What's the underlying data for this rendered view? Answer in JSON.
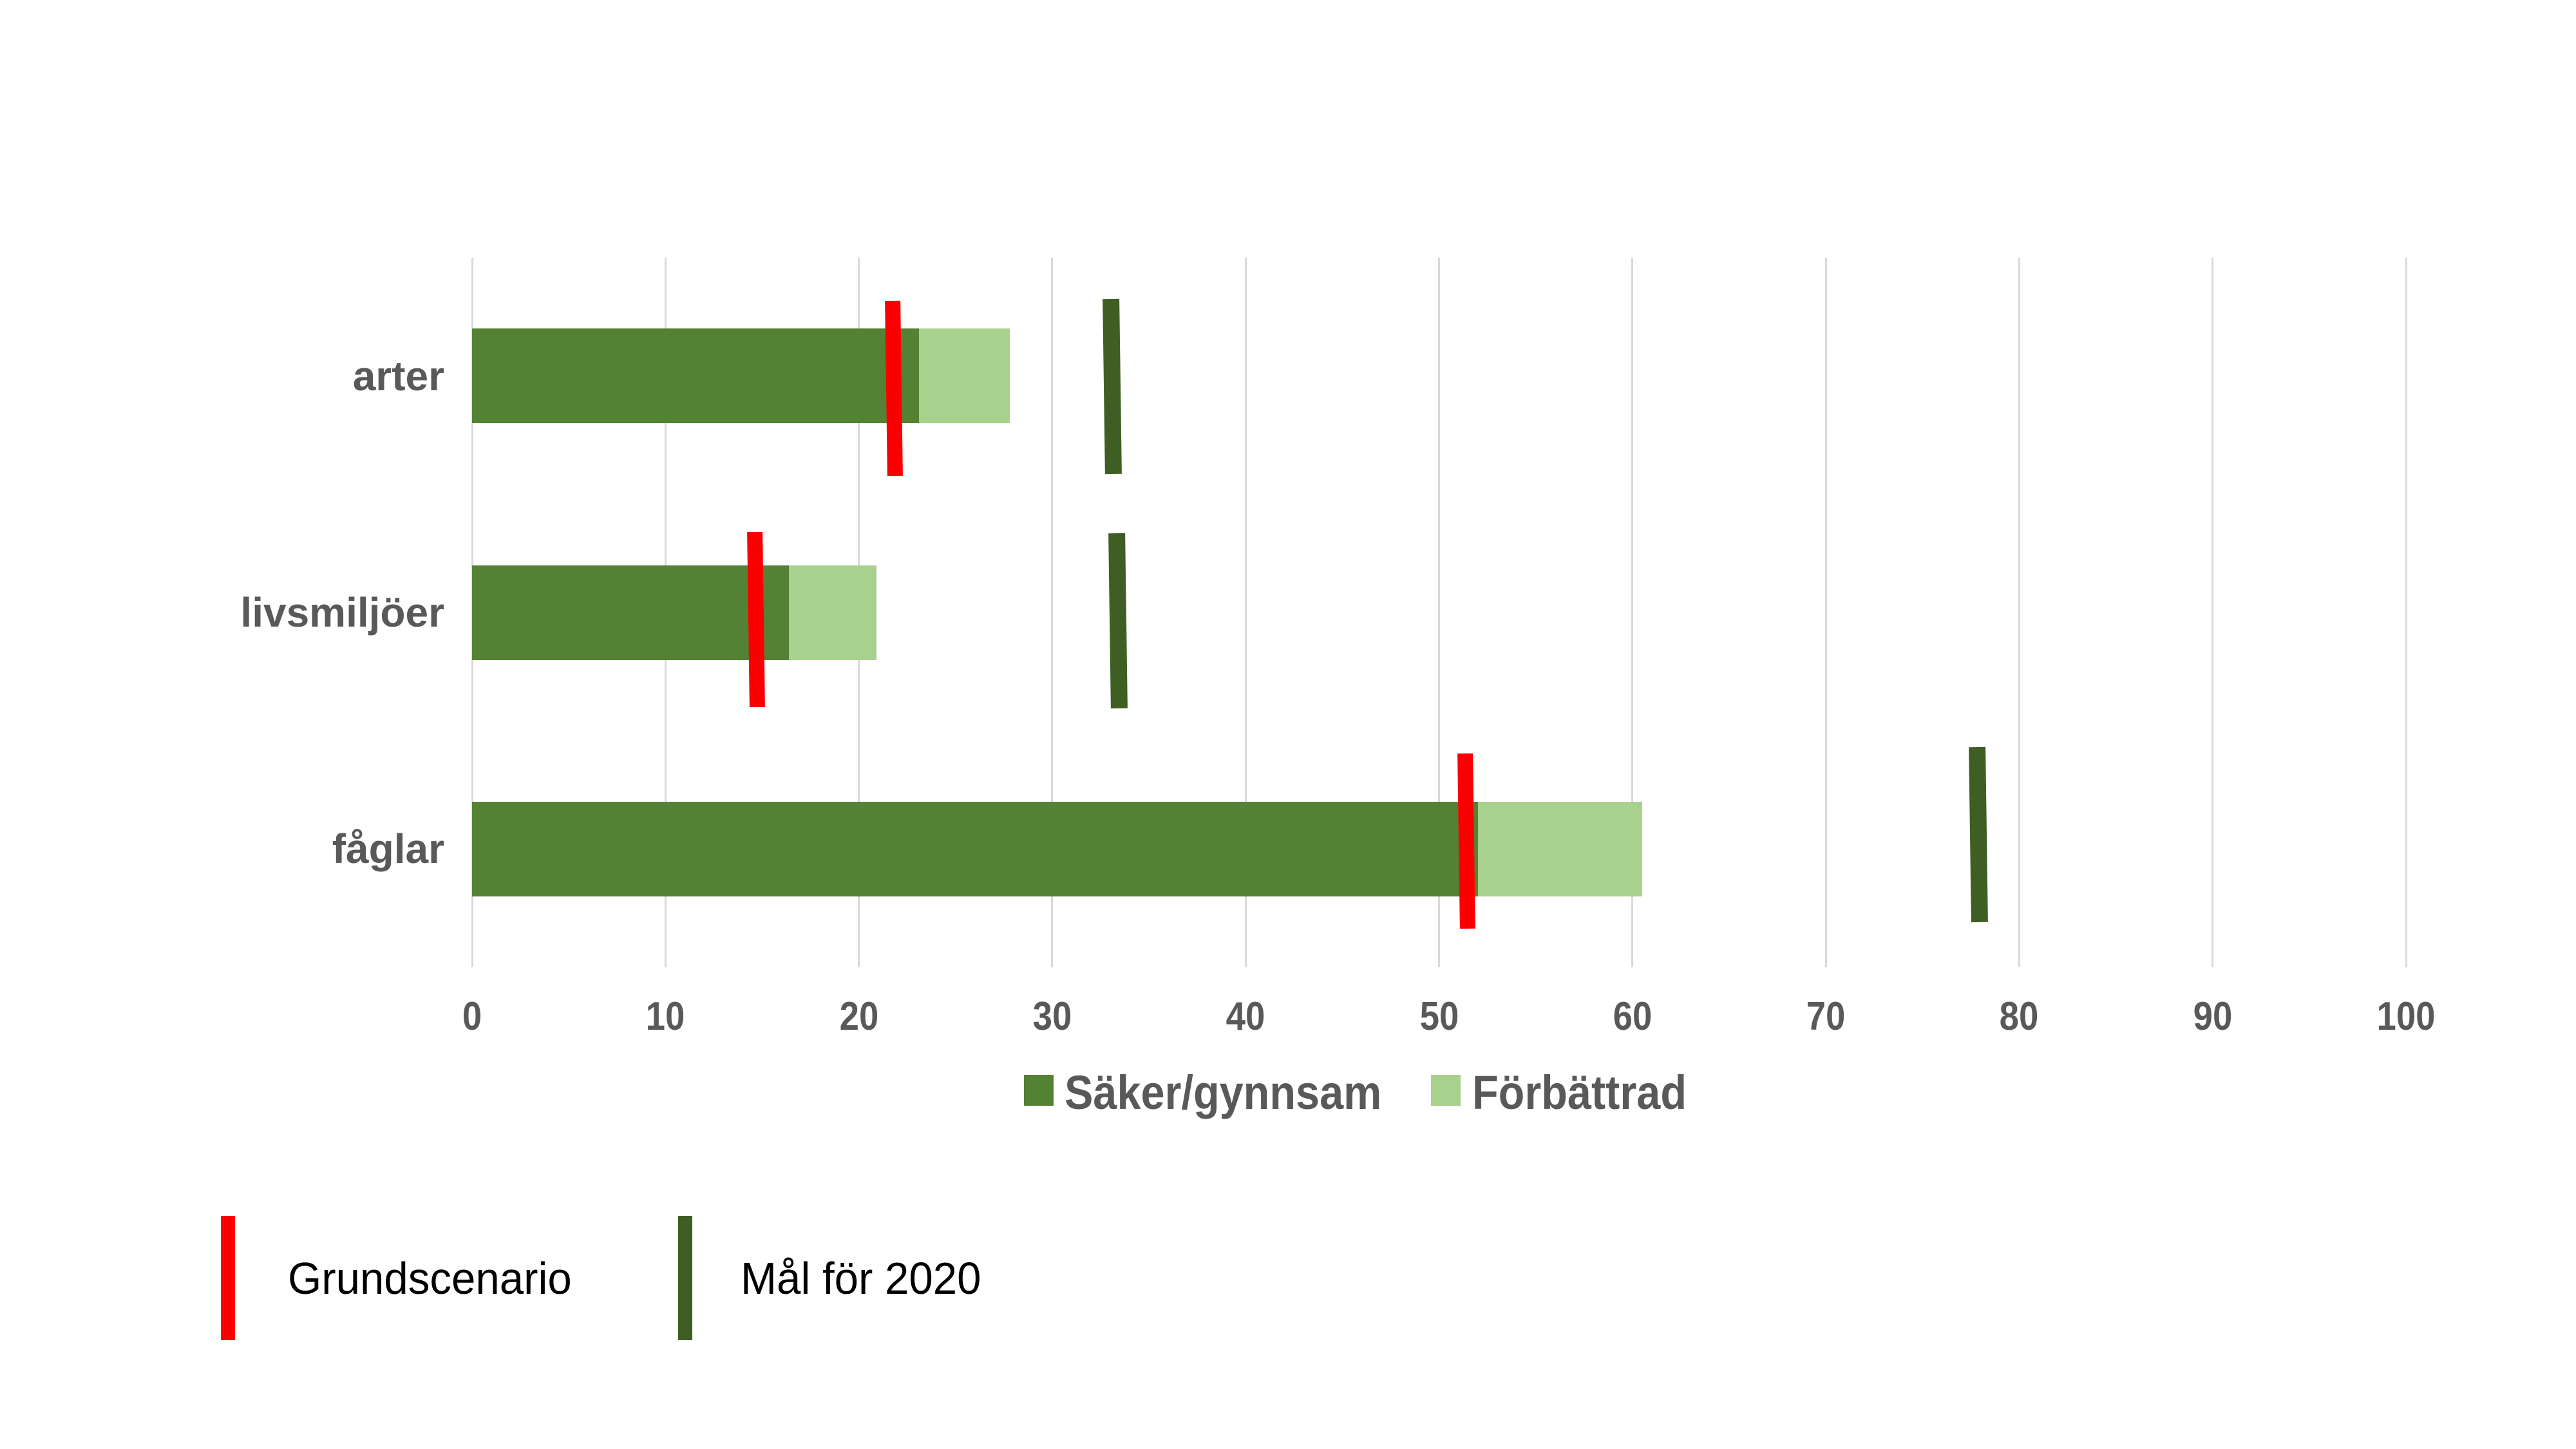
{
  "chart_data": {
    "type": "bar",
    "orientation": "horizontal",
    "categories": [
      "arter",
      "livsmiljöer",
      "fåglar"
    ],
    "series": [
      {
        "name": "Säker/gynnsam",
        "color": "#548235",
        "values": [
          23.1,
          16.4,
          52.0
        ]
      },
      {
        "name": "Förbättrad",
        "color": "#a9d18e",
        "values": [
          4.7,
          4.5,
          8.5
        ]
      }
    ],
    "stacked_totals": [
      27.8,
      20.9,
      60.5
    ],
    "markers": [
      {
        "name": "Grundscenario",
        "shape": "vertical-line",
        "color": "#fb0000",
        "values": [
          21.8,
          14.7,
          51.4
        ]
      },
      {
        "name": "Mål för 2020",
        "shape": "vertical-line",
        "color": "#3f5e23",
        "values": [
          33.1,
          33.4,
          77.9
        ]
      }
    ],
    "xlim": [
      0,
      100
    ],
    "xticks": [
      0,
      10,
      20,
      30,
      40,
      50,
      60,
      70,
      80,
      90,
      100
    ],
    "grid": "vertical-only",
    "gridline_color": "#d9d9d9",
    "tick_label_color": "#595959",
    "legend_position": "below-axis-center",
    "marker_legend_position": "bottom-left"
  }
}
